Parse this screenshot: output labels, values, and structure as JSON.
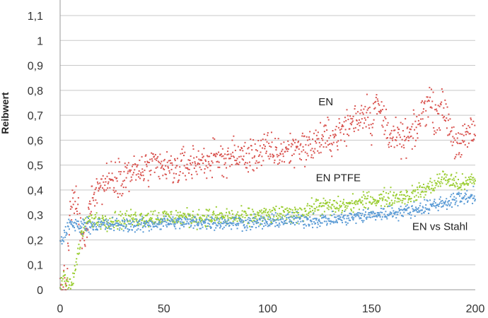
{
  "chart_data": {
    "type": "scatter",
    "title": "",
    "xlabel": "",
    "ylabel": "Reibwert",
    "xlim": [
      0,
      200
    ],
    "ylim": [
      0,
      1.1
    ],
    "x_ticks": [
      0,
      50,
      100,
      150,
      200
    ],
    "x_tick_labels": [
      "0",
      "50",
      "100",
      "150",
      "200"
    ],
    "y_ticks": [
      0,
      0.1,
      0.2,
      0.3,
      0.4,
      0.5,
      0.6,
      0.7,
      0.8,
      0.9,
      1,
      1.1
    ],
    "y_tick_labels": [
      "0",
      "0,1",
      "0,2",
      "0,3",
      "0,4",
      "0,5",
      "0,6",
      "0,7",
      "0,8",
      "0,9",
      "1",
      "1,1"
    ],
    "grid": true,
    "legend": "none",
    "annotations": [
      {
        "text": "EN",
        "x": 128,
        "y": 0.74,
        "series": "EN"
      },
      {
        "text": "EN PTFE",
        "x": 134,
        "y": 0.435,
        "series": "EN PTFE"
      },
      {
        "text": "EN vs Stahl",
        "x": 183,
        "y": 0.24,
        "series": "EN vs Stahl"
      }
    ],
    "series": [
      {
        "name": "EN",
        "color": "#d9534f",
        "x": [
          0,
          3,
          5,
          8,
          10,
          12,
          15,
          20,
          25,
          30,
          35,
          40,
          45,
          50,
          55,
          60,
          65,
          70,
          75,
          80,
          85,
          90,
          95,
          100,
          105,
          110,
          115,
          120,
          125,
          130,
          135,
          140,
          145,
          148,
          150,
          152,
          155,
          160,
          165,
          170,
          172,
          175,
          178,
          180,
          183,
          185,
          188,
          190,
          193,
          195,
          198,
          200
        ],
        "y": [
          0.01,
          0.02,
          0.32,
          0.36,
          0.22,
          0.18,
          0.39,
          0.42,
          0.45,
          0.46,
          0.47,
          0.48,
          0.49,
          0.49,
          0.48,
          0.5,
          0.51,
          0.52,
          0.52,
          0.53,
          0.54,
          0.53,
          0.55,
          0.56,
          0.55,
          0.56,
          0.58,
          0.57,
          0.6,
          0.61,
          0.63,
          0.67,
          0.7,
          0.73,
          0.66,
          0.75,
          0.7,
          0.61,
          0.6,
          0.62,
          0.65,
          0.72,
          0.77,
          0.7,
          0.72,
          0.73,
          0.65,
          0.6,
          0.55,
          0.62,
          0.63,
          0.64
        ],
        "spread": 0.05
      },
      {
        "name": "EN PTFE",
        "color": "#9acd32",
        "x": [
          0,
          2,
          4,
          6,
          8,
          10,
          12,
          15,
          20,
          30,
          40,
          50,
          60,
          70,
          80,
          90,
          100,
          110,
          115,
          120,
          125,
          130,
          140,
          150,
          160,
          170,
          180,
          185,
          190,
          195,
          200
        ],
        "y": [
          0.02,
          0.06,
          0.03,
          0.02,
          0.12,
          0.2,
          0.26,
          0.28,
          0.28,
          0.28,
          0.29,
          0.29,
          0.29,
          0.29,
          0.29,
          0.29,
          0.3,
          0.3,
          0.31,
          0.32,
          0.34,
          0.33,
          0.34,
          0.36,
          0.37,
          0.38,
          0.42,
          0.45,
          0.43,
          0.42,
          0.45
        ],
        "spread": 0.025
      },
      {
        "name": "EN vs Stahl",
        "color": "#5b9bd5",
        "x": [
          0,
          2,
          4,
          6,
          10,
          20,
          30,
          40,
          50,
          60,
          70,
          80,
          90,
          100,
          110,
          120,
          130,
          140,
          150,
          160,
          170,
          180,
          190,
          200
        ],
        "y": [
          0.18,
          0.22,
          0.26,
          0.26,
          0.26,
          0.26,
          0.26,
          0.26,
          0.27,
          0.27,
          0.27,
          0.27,
          0.27,
          0.27,
          0.28,
          0.28,
          0.28,
          0.29,
          0.3,
          0.31,
          0.32,
          0.34,
          0.36,
          0.38
        ],
        "spread": 0.02
      }
    ]
  }
}
